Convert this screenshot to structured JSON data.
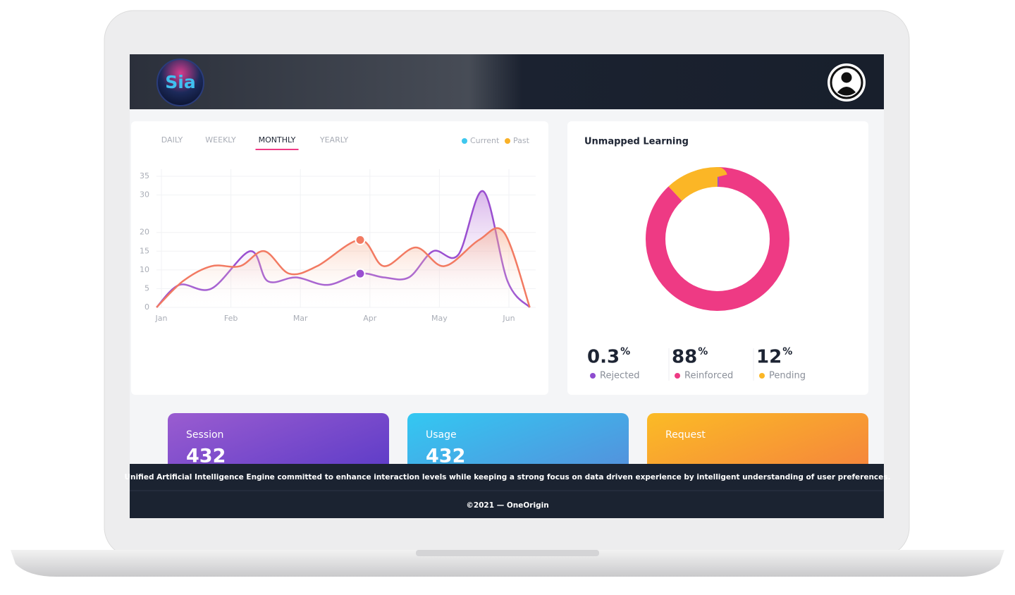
{
  "header": {
    "logo": "Sia"
  },
  "tabs": {
    "items": [
      "DAILY",
      "WEEKLY",
      "MONTHLY",
      "YEARLY"
    ],
    "active": 2
  },
  "chart_data": [
    {
      "type": "line",
      "xlim": [
        -0.07,
        5.3
      ],
      "xticks": [
        {
          "value": 0,
          "label": "Jan"
        },
        {
          "value": 1,
          "label": "Feb"
        },
        {
          "value": 2,
          "label": "Mar"
        },
        {
          "value": 3,
          "label": "Apr"
        },
        {
          "value": 4,
          "label": "May"
        },
        {
          "value": 5,
          "label": "Jun"
        }
      ],
      "ylim": [
        0,
        35
      ],
      "yticks": [
        0,
        5,
        10,
        15,
        20,
        30,
        35
      ],
      "grid": true,
      "highlight_index": 7,
      "series": [
        {
          "name": "Current",
          "color": "#3ec7ee",
          "line_color": "#9a4fd0",
          "x": [
            -0.07,
            0.26,
            0.72,
            1.28,
            1.53,
            1.94,
            2.39,
            2.86,
            3.2,
            3.56,
            3.91,
            4.27,
            4.63,
            4.98,
            5.3
          ],
          "values": [
            0,
            6,
            5,
            15,
            7,
            8,
            6,
            9,
            8,
            8,
            15,
            14,
            31,
            7,
            0
          ]
        },
        {
          "name": "Past",
          "color": "#f9b128",
          "line_color": "#f27a62",
          "x": [
            -0.07,
            0.31,
            0.72,
            1.13,
            1.48,
            1.84,
            2.24,
            2.86,
            3.2,
            3.66,
            4.07,
            4.57,
            4.93,
            5.3
          ],
          "values": [
            0,
            7,
            11,
            11,
            15,
            9,
            11,
            18,
            11,
            16,
            11,
            18,
            20,
            0
          ]
        }
      ]
    },
    {
      "type": "donut",
      "title": "Unmapped Learning",
      "unit": "%",
      "categories": [
        "Rejected",
        "Reinforced",
        "Pending"
      ],
      "values": [
        0.3,
        88,
        12
      ],
      "colors": [
        "#8e4ccf",
        "#ee3a84",
        "#fbb626"
      ]
    }
  ],
  "cards": [
    {
      "title": "Session",
      "value": 432
    },
    {
      "title": "Usage",
      "value": 432
    },
    {
      "title": "Request"
    }
  ],
  "footer": {
    "tagline": "Unified Artificial Intelligence Engine committed to enhance interaction levels while keeping a strong focus on data driven experience by intelligent understanding of user preferences.",
    "copyright": "©2021 — OneOrigin"
  }
}
